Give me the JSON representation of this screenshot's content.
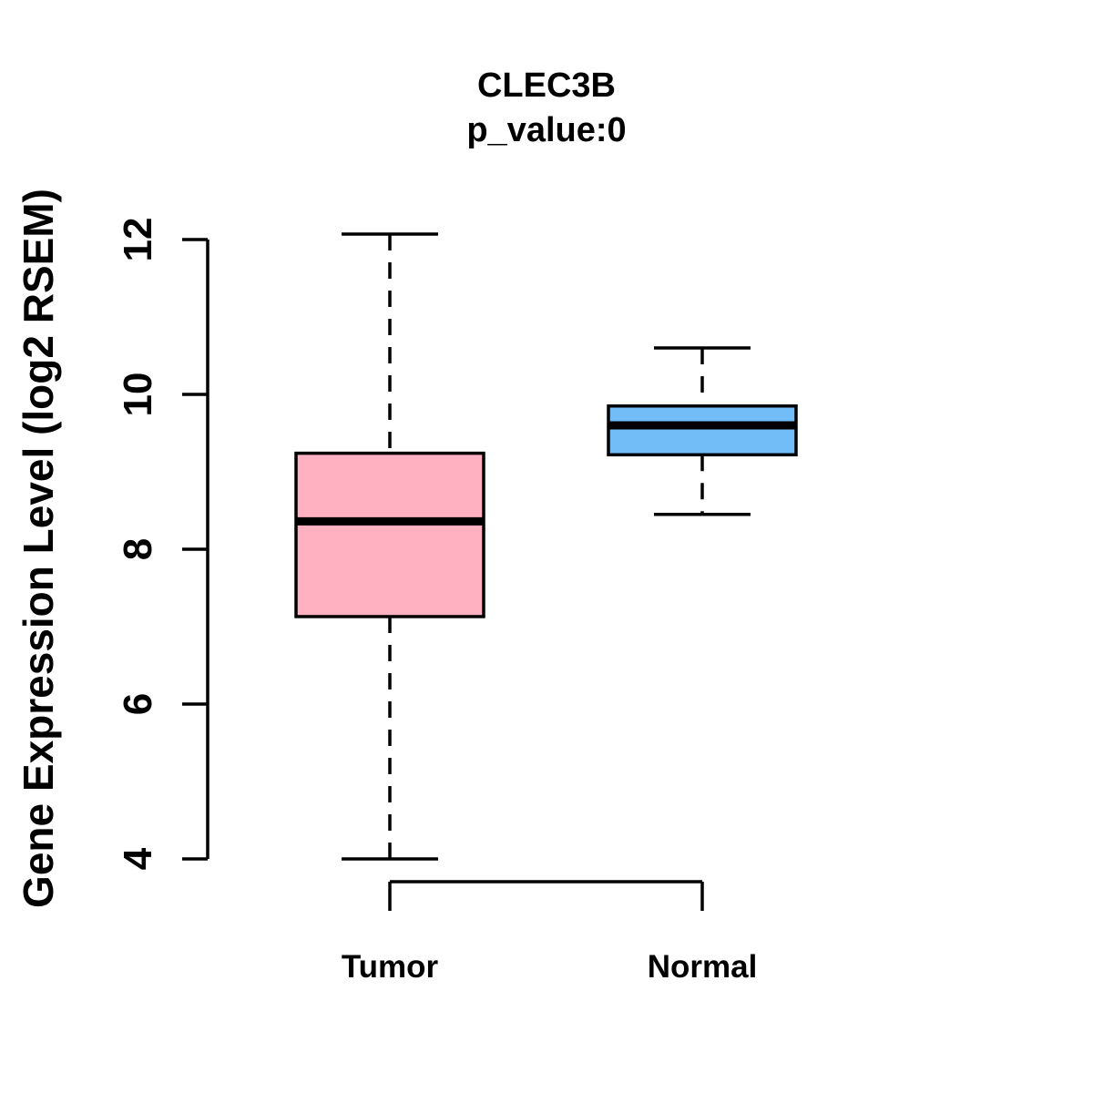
{
  "title": "CLEC3B",
  "subtitle": "p_value:0",
  "chart_data": {
    "type": "boxplot",
    "title": "CLEC3B",
    "subtitle": "p_value:0",
    "ylabel": "Gene Expression Level (log2 RSEM)",
    "xlabel": "",
    "categories": [
      "Tumor",
      "Normal"
    ],
    "series": [
      {
        "name": "Tumor",
        "fill_color": "#FFB1C1",
        "whisker_low": 4.0,
        "q1": 7.13,
        "median": 8.36,
        "q3": 9.24,
        "whisker_high": 12.07
      },
      {
        "name": "Normal",
        "fill_color": "#72BCF7",
        "whisker_low": 8.45,
        "q1": 9.22,
        "median": 9.6,
        "q3": 9.85,
        "whisker_high": 10.6
      }
    ],
    "yticks": [
      4,
      6,
      8,
      10,
      12
    ],
    "ylim": [
      4,
      12
    ],
    "grid": false,
    "legend": "none",
    "stroke_color": "#000000",
    "background_color": "#FFFFFF"
  }
}
